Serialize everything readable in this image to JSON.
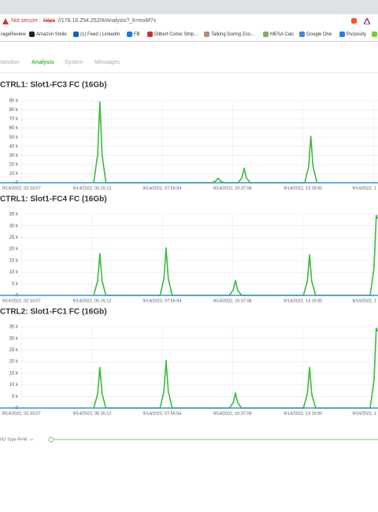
{
  "browser": {
    "security": "Not secure",
    "scheme": "https",
    "url": "://176.16.254.252/#/Analysis?_k=mx8f7x",
    "bookmarks": [
      "rageReview",
      "Amazon Smile",
      "(1) Feed | LinkedIn",
      "FB",
      "Dilbert Comic Strip...",
      "Talking During Zoo...",
      "MESA Calc",
      "Google One",
      "Purposity"
    ]
  },
  "nav": {
    "tabs": [
      "otection",
      "Analysis",
      "System",
      "Messages"
    ],
    "active": 1
  },
  "chart_data": [
    {
      "type": "line",
      "title": "CTRL1: Slot1-FC3 FC (16Gb)",
      "grid": true,
      "xlim": [
        "9/14/2022, 01:44:00",
        "9/14/2022, 16:11:00"
      ],
      "xticks": [
        "9/14/2022, 02:33:07",
        "9/14/2022, 05:15:12",
        "9/14/2022, 07:55:54",
        "9/14/2022, 10:37:08",
        "9/14/2022, 13:19:00",
        {
          "value": "9/14/2022, 16:00:52",
          "label": "9/14/2022, 1"
        }
      ],
      "ylim": [
        0,
        90000
      ],
      "yticks": [
        0,
        {
          "value": 10000,
          "label": "10 k"
        },
        {
          "value": 20000,
          "label": "20 k"
        },
        {
          "value": 30000,
          "label": "30 k"
        },
        {
          "value": 40000,
          "label": "40 k"
        },
        {
          "value": 50000,
          "label": "50 k"
        },
        {
          "value": 60000,
          "label": "60 k"
        },
        {
          "value": 70000,
          "label": "70 k"
        },
        {
          "value": 80000,
          "label": "80 k"
        },
        {
          "value": 90000,
          "label": "90 k"
        }
      ],
      "series": [
        {
          "color": "#3dba3a",
          "x": [
            "9/14/2022, 05:19:00",
            "9/14/2022, 05:28:00",
            "9/14/2022, 05:33:00",
            "9/14/2022, 05:38:00",
            "9/14/2022, 05:47:00",
            "9/14/2022, 09:50:00",
            "9/14/2022, 09:59:00",
            "9/14/2022, 10:04:00",
            "9/14/2022, 10:09:00",
            "9/14/2022, 10:18:00",
            "9/14/2022, 10:50:00",
            "9/14/2022, 10:59:00",
            "9/14/2022, 11:04:00",
            "9/14/2022, 11:09:00",
            "9/14/2022, 11:18:00",
            "9/14/2022, 13:23:00",
            "9/14/2022, 13:32:00",
            "9/14/2022, 13:37:00",
            "9/14/2022, 13:42:00",
            "9/14/2022, 13:51:00"
          ],
          "values": [
            0,
            31000,
            89000,
            31000,
            0,
            0,
            1800,
            5000,
            1800,
            0,
            0,
            5600,
            16000,
            5600,
            0,
            0,
            18000,
            51000,
            18000,
            0
          ]
        },
        {
          "color": "#3a8fd9",
          "x": [
            "9/14/2022, 01:44:00",
            "9/14/2022, 16:11:00"
          ],
          "values": [
            0,
            0
          ]
        }
      ]
    },
    {
      "type": "line",
      "title": "CTRL1: Slot1-FC4 FC (16Gb)",
      "grid": true,
      "xlim": [
        "9/14/2022, 01:44:00",
        "9/14/2022, 16:11:00"
      ],
      "xticks": [
        "9/14/2022, 02:33:07",
        "9/14/2022, 05:15:12",
        "9/14/2022, 07:55:54",
        "9/14/2022, 10:37:08",
        "9/14/2022, 13:19:00",
        {
          "value": "9/14/2022, 16:00:52",
          "label": "9/14/2022, 1"
        }
      ],
      "ylim": [
        0,
        35000
      ],
      "yticks": [
        0,
        {
          "value": 5000,
          "label": "5 k"
        },
        {
          "value": 10000,
          "label": "10 k"
        },
        {
          "value": 15000,
          "label": "15 k"
        },
        {
          "value": 20000,
          "label": "20 k"
        },
        {
          "value": 25000,
          "label": "25 k"
        },
        {
          "value": 30000,
          "label": "30 k"
        },
        {
          "value": 35000,
          "label": "35 k"
        }
      ],
      "series": [
        {
          "color": "#3dba3a",
          "x": [
            "9/14/2022, 05:19:00",
            "9/14/2022, 05:28:00",
            "9/14/2022, 05:33:00",
            "9/14/2022, 05:38:00",
            "9/14/2022, 05:47:00",
            "9/14/2022, 07:51:00",
            "9/14/2022, 08:00:00",
            "9/14/2022, 08:05:00",
            "9/14/2022, 08:10:00",
            "9/14/2022, 08:19:00",
            "9/14/2022, 10:30:00",
            "9/14/2022, 10:39:00",
            "9/14/2022, 10:44:00",
            "9/14/2022, 10:49:00",
            "9/14/2022, 10:58:00",
            "9/14/2022, 13:20:00",
            "9/14/2022, 13:29:00",
            "9/14/2022, 13:34:00",
            "9/14/2022, 13:39:00",
            "9/14/2022, 13:48:00",
            "9/14/2022, 15:53:00",
            "9/14/2022, 16:02:00",
            "9/14/2022, 16:07:00",
            "9/14/2022, 16:11:00"
          ],
          "values": [
            0,
            6300,
            18000,
            6300,
            0,
            0,
            7200,
            20500,
            7200,
            0,
            0,
            2300,
            6500,
            2300,
            0,
            0,
            6100,
            17500,
            6100,
            0,
            0,
            12000,
            34500,
            33000
          ]
        },
        {
          "color": "#3a8fd9",
          "x": [
            "9/14/2022, 01:44:00",
            "9/14/2022, 16:11:00"
          ],
          "values": [
            0,
            0
          ]
        }
      ]
    },
    {
      "type": "line",
      "title": "CTRL2: Slot1-FC1 FC (16Gb)",
      "grid": true,
      "xlim": [
        "9/14/2022, 01:44:00",
        "9/14/2022, 16:11:00"
      ],
      "xticks": [
        "9/14/2022, 02:33:07",
        "9/14/2022, 05:15:12",
        "9/14/2022, 07:55:54",
        "9/14/2022, 10:37:08",
        "9/14/2022, 13:19:00",
        {
          "value": "9/14/2022, 16:00:52",
          "label": "9/14/2022, 1"
        }
      ],
      "ylim": [
        0,
        35000
      ],
      "yticks": [
        0,
        {
          "value": 5000,
          "label": "5 k"
        },
        {
          "value": 10000,
          "label": "10 k"
        },
        {
          "value": 15000,
          "label": "15 k"
        },
        {
          "value": 20000,
          "label": "20 k"
        },
        {
          "value": 25000,
          "label": "25 k"
        },
        {
          "value": 30000,
          "label": "30 k"
        },
        {
          "value": 35000,
          "label": "35 k"
        }
      ],
      "series": [
        {
          "color": "#3dba3a",
          "x": [
            "9/14/2022, 05:19:00",
            "9/14/2022, 05:28:00",
            "9/14/2022, 05:33:00",
            "9/14/2022, 05:38:00",
            "9/14/2022, 05:47:00",
            "9/14/2022, 07:51:00",
            "9/14/2022, 08:00:00",
            "9/14/2022, 08:05:00",
            "9/14/2022, 08:10:00",
            "9/14/2022, 08:19:00",
            "9/14/2022, 10:30:00",
            "9/14/2022, 10:39:00",
            "9/14/2022, 10:44:00",
            "9/14/2022, 10:49:00",
            "9/14/2022, 10:58:00",
            "9/14/2022, 13:20:00",
            "9/14/2022, 13:29:00",
            "9/14/2022, 13:34:00",
            "9/14/2022, 13:39:00",
            "9/14/2022, 13:48:00",
            "9/14/2022, 15:53:00",
            "9/14/2022, 16:02:00",
            "9/14/2022, 16:07:00",
            "9/14/2022, 16:11:00"
          ],
          "values": [
            0,
            6100,
            17500,
            6100,
            0,
            0,
            7200,
            20500,
            7200,
            0,
            0,
            2300,
            6500,
            2300,
            0,
            0,
            6100,
            17500,
            6100,
            0,
            0,
            12000,
            34500,
            33000
          ]
        },
        {
          "color": "#3a8fd9",
          "x": [
            "9/14/2022, 01:44:00",
            "9/14/2022, 16:11:00"
          ],
          "values": [
            0,
            0
          ]
        }
      ]
    }
  ],
  "controls": {
    "io_type": "I/O Type R+W"
  }
}
